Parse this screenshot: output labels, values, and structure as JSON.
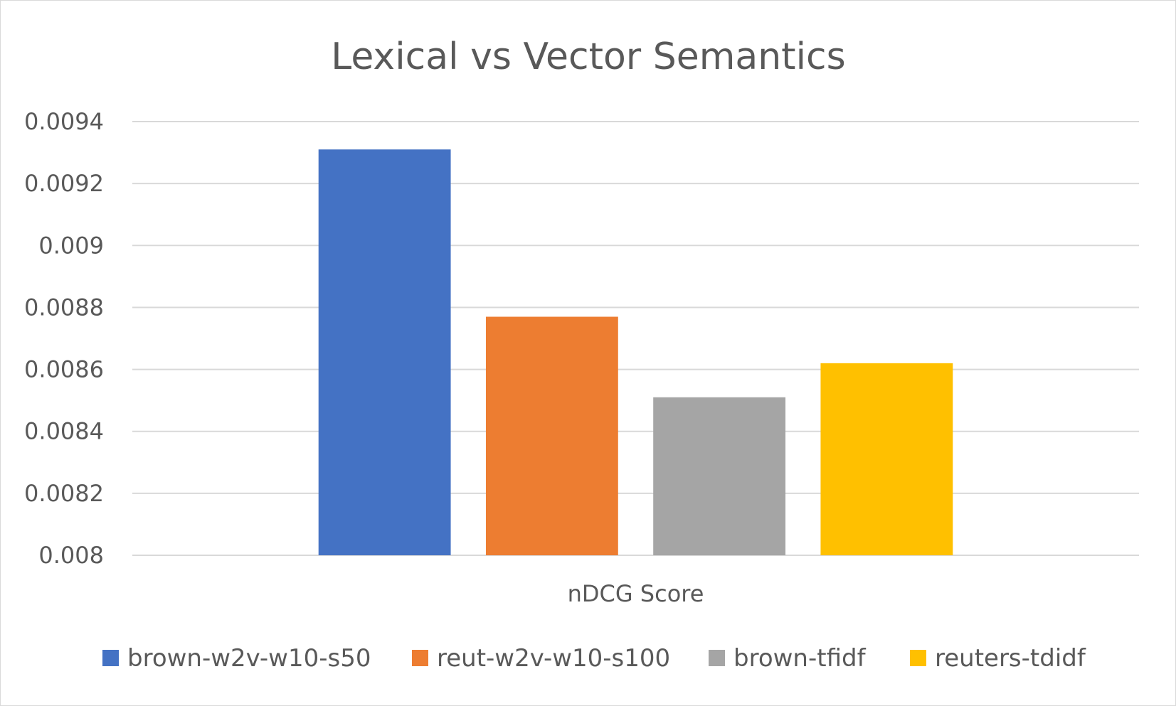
{
  "chart_data": {
    "type": "bar",
    "title": "Lexical vs Vector Semantics",
    "categories": [
      "nDCG Score"
    ],
    "xlabel": "",
    "ylabel": "",
    "ylim": [
      0.008,
      0.0094
    ],
    "yticks": [
      "0.008",
      "0.0082",
      "0.0084",
      "0.0086",
      "0.0088",
      "0.009",
      "0.0092",
      "0.0094"
    ],
    "grid": true,
    "legend_position": "bottom",
    "series": [
      {
        "name": "brown-w2v-w10-s50",
        "values": [
          0.00931
        ],
        "color": "#4472C4"
      },
      {
        "name": "reut-w2v-w10-s100",
        "values": [
          0.00877
        ],
        "color": "#ED7D31"
      },
      {
        "name": "brown-tfidf",
        "values": [
          0.00851
        ],
        "color": "#A5A5A5"
      },
      {
        "name": "reuters-tdidf",
        "values": [
          0.00862
        ],
        "color": "#FFC000"
      }
    ]
  }
}
